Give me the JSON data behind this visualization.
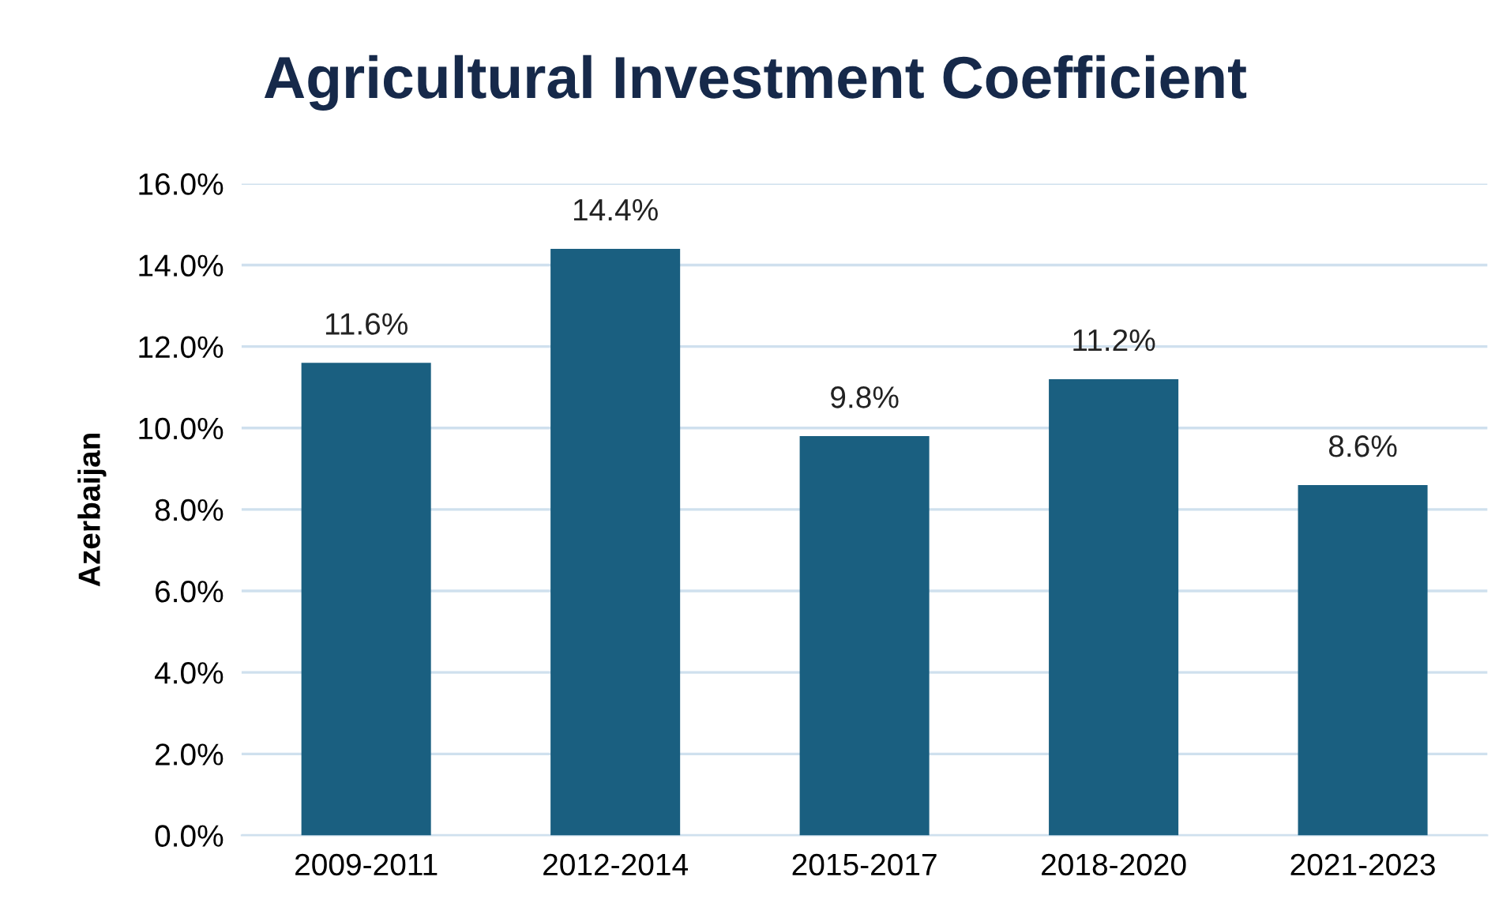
{
  "chart_data": {
    "type": "bar",
    "title": "Agricultural Investment Coefficient",
    "ylabel": "Azerbaijan",
    "categories": [
      "2009-2011",
      "2012-2014",
      "2015-2017",
      "2018-2020",
      "2021-2023"
    ],
    "values": [
      11.6,
      14.4,
      9.8,
      11.2,
      8.6
    ],
    "value_labels": [
      "11.6%",
      "14.4%",
      "9.8%",
      "11.2%",
      "8.6%"
    ],
    "color": "#1a5f80",
    "ylim": [
      0,
      16
    ],
    "yticks": [
      {
        "value": 0,
        "label": "0.0%"
      },
      {
        "value": 2,
        "label": "2.0%"
      },
      {
        "value": 4,
        "label": "4.0%"
      },
      {
        "value": 6,
        "label": "6.0%"
      },
      {
        "value": 8,
        "label": "8.0%"
      },
      {
        "value": 10,
        "label": "10.0%"
      },
      {
        "value": 12,
        "label": "12.0%"
      },
      {
        "value": 14,
        "label": "14.0%"
      },
      {
        "value": 16,
        "label": "16.0%"
      }
    ],
    "grid": "y",
    "legend": false
  }
}
